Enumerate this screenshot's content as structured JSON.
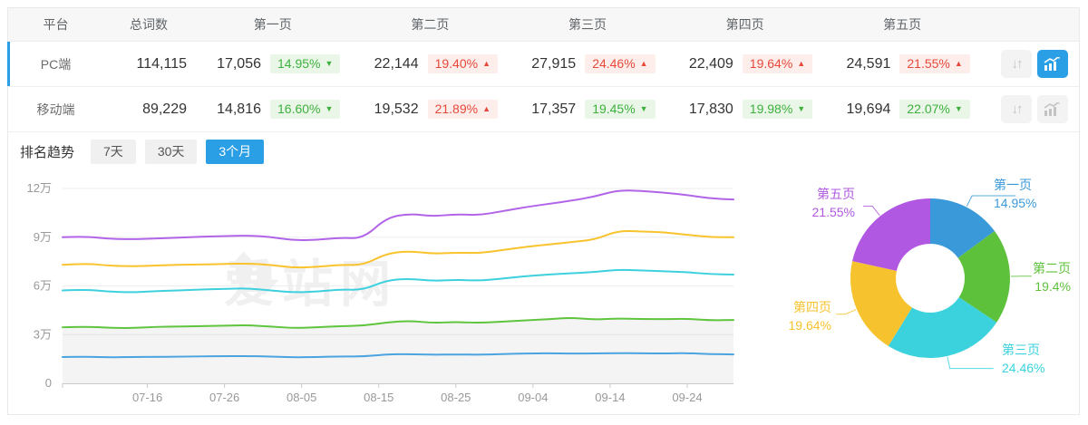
{
  "table": {
    "headers": [
      "平台",
      "总词数",
      "第一页",
      "第二页",
      "第三页",
      "第四页",
      "第五页"
    ],
    "rows": [
      {
        "platform": "PC端",
        "total": "114,115",
        "selected": true,
        "pages": [
          {
            "count": "17,056",
            "pct": "14.95%",
            "arrow": "▼",
            "trend": "down"
          },
          {
            "count": "22,144",
            "pct": "19.40%",
            "arrow": "▲",
            "trend": "up"
          },
          {
            "count": "27,915",
            "pct": "24.46%",
            "arrow": "▲",
            "trend": "up"
          },
          {
            "count": "22,409",
            "pct": "19.64%",
            "arrow": "▲",
            "trend": "up"
          },
          {
            "count": "24,591",
            "pct": "21.55%",
            "arrow": "▲",
            "trend": "up"
          }
        ],
        "icons": {
          "sort_glyph": "↓↑",
          "chart_active": true
        }
      },
      {
        "platform": "移动端",
        "total": "89,229",
        "selected": false,
        "pages": [
          {
            "count": "14,816",
            "pct": "16.60%",
            "arrow": "▼",
            "trend": "down"
          },
          {
            "count": "19,532",
            "pct": "21.89%",
            "arrow": "▲",
            "trend": "up"
          },
          {
            "count": "17,357",
            "pct": "19.45%",
            "arrow": "▼",
            "trend": "down"
          },
          {
            "count": "17,830",
            "pct": "19.98%",
            "arrow": "▼",
            "trend": "down"
          },
          {
            "count": "19,694",
            "pct": "22.07%",
            "arrow": "▼",
            "trend": "down"
          }
        ],
        "icons": {
          "sort_glyph": "↓↑",
          "chart_active": false
        }
      }
    ]
  },
  "trend": {
    "title": "排名趋势",
    "tabs": [
      {
        "label": "7天",
        "active": false
      },
      {
        "label": "30天",
        "active": false
      },
      {
        "label": "3个月",
        "active": true
      }
    ]
  },
  "watermark": {
    "text": "爱站网"
  },
  "colors": {
    "accent_blue": "#2b9fe6",
    "badge_green_text": "#3db03d",
    "badge_green_bg": "#eaf7e8",
    "badge_red_text": "#e6493a",
    "badge_red_bg": "#fdeeec"
  },
  "chart_data": [
    {
      "type": "line",
      "title": "排名趋势 (3个月)",
      "note": "lines are cumulative keyword counts stacked by result page; unit 万 (10,000)",
      "ylim": [
        0,
        12
      ],
      "grid": true,
      "y_ticks": [
        {
          "label": "0",
          "value": 0
        },
        {
          "label": "3万",
          "value": 3
        },
        {
          "label": "6万",
          "value": 6
        },
        {
          "label": "9万",
          "value": 9
        },
        {
          "label": "12万",
          "value": 12
        }
      ],
      "total_days": 87,
      "x_ticks": [
        {
          "label": "07-16",
          "day": 11
        },
        {
          "label": "07-26",
          "day": 21
        },
        {
          "label": "08-05",
          "day": 31
        },
        {
          "label": "08-15",
          "day": 41
        },
        {
          "label": "08-25",
          "day": 51
        },
        {
          "label": "09-04",
          "day": 61
        },
        {
          "label": "09-14",
          "day": 71
        },
        {
          "label": "09-24",
          "day": 81
        }
      ],
      "days": [
        0,
        3,
        6,
        9,
        12,
        15,
        18,
        21,
        24,
        27,
        30,
        33,
        36,
        39,
        42,
        45,
        48,
        51,
        54,
        57,
        60,
        63,
        66,
        69,
        72,
        75,
        78,
        81,
        84,
        87
      ],
      "series": [
        {
          "name": "第一页",
          "color": "#4ba4e0",
          "area": false,
          "values": [
            1.62,
            1.64,
            1.6,
            1.62,
            1.63,
            1.64,
            1.66,
            1.67,
            1.68,
            1.65,
            1.6,
            1.62,
            1.66,
            1.65,
            1.78,
            1.8,
            1.76,
            1.78,
            1.76,
            1.8,
            1.84,
            1.85,
            1.83,
            1.84,
            1.86,
            1.85,
            1.84,
            1.86,
            1.8,
            1.78
          ]
        },
        {
          "name": "第二页",
          "color": "#5fc43e",
          "area": true,
          "values": [
            3.45,
            3.5,
            3.42,
            3.4,
            3.48,
            3.5,
            3.52,
            3.55,
            3.58,
            3.5,
            3.4,
            3.45,
            3.52,
            3.55,
            3.75,
            3.85,
            3.72,
            3.78,
            3.72,
            3.8,
            3.88,
            3.95,
            4.05,
            3.92,
            4.0,
            3.96,
            3.95,
            3.98,
            3.88,
            3.9
          ]
        },
        {
          "name": "第三页",
          "color": "#3ed0dd",
          "area": false,
          "values": [
            5.72,
            5.78,
            5.65,
            5.6,
            5.68,
            5.72,
            5.78,
            5.82,
            5.85,
            5.72,
            5.6,
            5.65,
            5.78,
            5.75,
            6.35,
            6.45,
            6.3,
            6.38,
            6.32,
            6.45,
            6.6,
            6.7,
            6.78,
            6.85,
            7.0,
            6.95,
            6.9,
            6.85,
            6.72,
            6.7
          ]
        },
        {
          "name": "第四页",
          "color": "#f8c32c",
          "area": false,
          "values": [
            7.3,
            7.38,
            7.25,
            7.2,
            7.25,
            7.3,
            7.32,
            7.35,
            7.38,
            7.3,
            7.12,
            7.17,
            7.3,
            7.28,
            8.0,
            8.15,
            7.98,
            8.05,
            8.02,
            8.2,
            8.4,
            8.55,
            8.7,
            8.85,
            9.4,
            9.35,
            9.3,
            9.15,
            9.0,
            9.0
          ]
        },
        {
          "name": "第五页",
          "color": "#b264e8",
          "area": false,
          "values": [
            9.0,
            9.05,
            8.9,
            8.87,
            8.92,
            8.97,
            9.03,
            9.07,
            9.1,
            9.02,
            8.8,
            8.84,
            8.97,
            8.92,
            10.2,
            10.45,
            10.28,
            10.42,
            10.35,
            10.6,
            10.85,
            11.05,
            11.25,
            11.5,
            11.9,
            11.85,
            11.75,
            11.6,
            11.38,
            11.32
          ]
        }
      ]
    },
    {
      "type": "pie",
      "style": "donut",
      "start_angle": "top",
      "direction": "clockwise",
      "slices": [
        {
          "label": "第一页",
          "value": 14.95,
          "display": "14.95%",
          "color": "#3a99d9"
        },
        {
          "label": "第二页",
          "value": 19.4,
          "display": "19.4%",
          "color": "#5ec13c"
        },
        {
          "label": "第三页",
          "value": 24.46,
          "display": "24.46%",
          "color": "#3bd2de"
        },
        {
          "label": "第四页",
          "value": 19.64,
          "display": "19.64%",
          "color": "#f6c22d"
        },
        {
          "label": "第五页",
          "value": 21.55,
          "display": "21.55%",
          "color": "#b158e3"
        }
      ]
    }
  ]
}
